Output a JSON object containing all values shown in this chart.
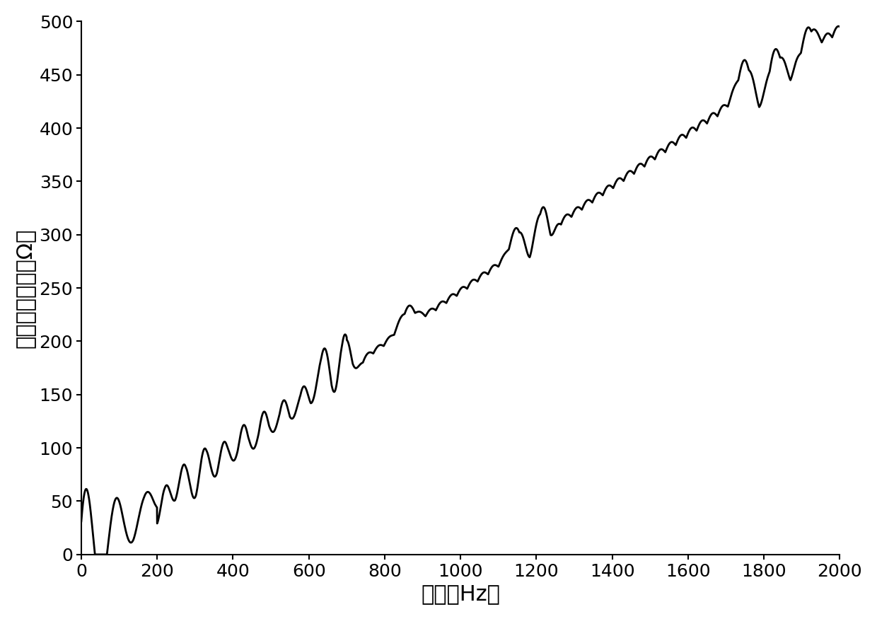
{
  "xlabel": "频率（Hz）",
  "ylabel": "谐波阻抗幅値（Ω）",
  "xlim": [
    0,
    2000
  ],
  "ylim": [
    0,
    500
  ],
  "xticks": [
    0,
    200,
    400,
    600,
    800,
    1000,
    1200,
    1400,
    1600,
    1800,
    2000
  ],
  "yticks": [
    0,
    50,
    100,
    150,
    200,
    250,
    300,
    350,
    400,
    450,
    500
  ],
  "line_color": "#000000",
  "line_width": 2.0,
  "background_color": "#ffffff",
  "xlabel_fontsize": 22,
  "ylabel_fontsize": 22,
  "tick_fontsize": 18
}
